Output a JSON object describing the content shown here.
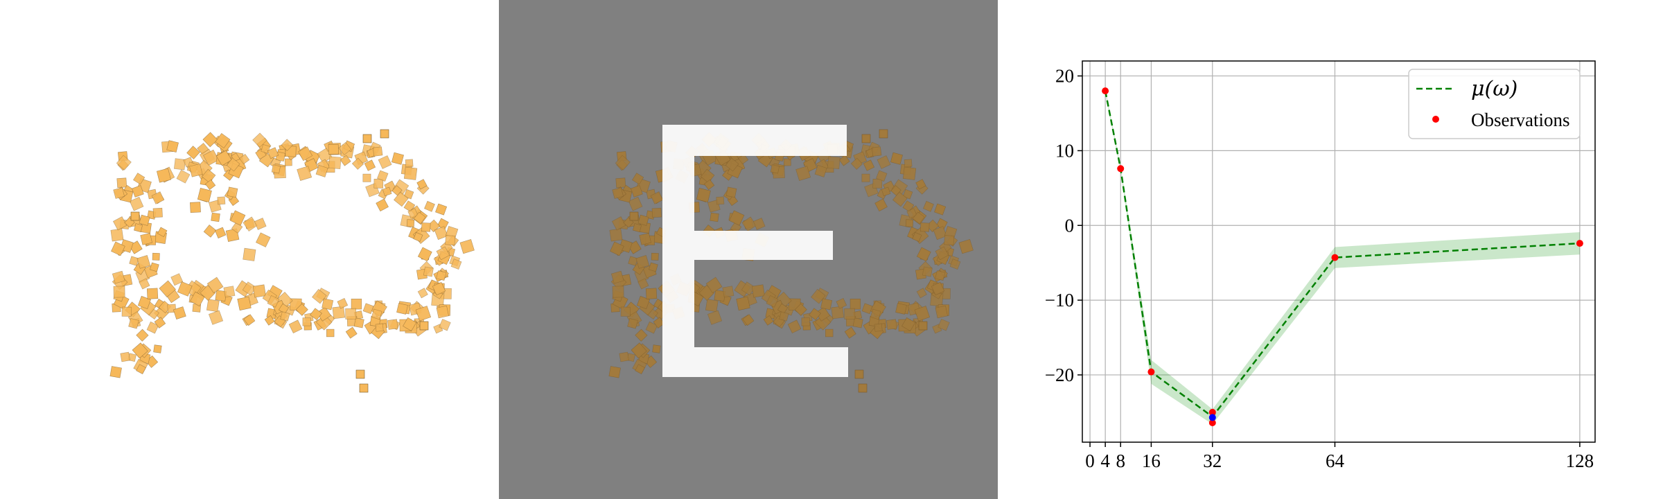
{
  "panels": {
    "left": {
      "name": "P-shaped block cluster",
      "block_color": "#f6b85a"
    },
    "middle": {
      "name": "E-letter overlay on block cluster",
      "background": "#808080",
      "block_color": "#a27a3c",
      "overlay_color": "#ffffff"
    }
  },
  "chart_data": {
    "type": "line",
    "title": "",
    "xlabel": "",
    "ylabel": "",
    "xlim": [
      -2,
      132
    ],
    "ylim": [
      -29,
      22
    ],
    "xticks": [
      0,
      4,
      8,
      16,
      32,
      64,
      128
    ],
    "yticks": [
      -20,
      -10,
      0,
      10,
      20
    ],
    "grid": true,
    "legend_position": "top-right",
    "series": [
      {
        "name": "μ(ω)",
        "style": "dashed",
        "color": "#008000",
        "x": [
          4,
          8,
          16,
          32,
          64,
          128
        ],
        "y": [
          18.0,
          7.6,
          -19.6,
          -25.6,
          -4.3,
          -2.4
        ],
        "band_halfwidth": [
          0.3,
          0.3,
          1.6,
          1.0,
          1.4,
          1.5
        ],
        "band_color": "#2ca02c"
      },
      {
        "name": "Observations",
        "style": "markers",
        "color": "#ff0000",
        "x": [
          4,
          8,
          16,
          32,
          32,
          64,
          128
        ],
        "y": [
          18.0,
          7.6,
          -19.6,
          -25.0,
          -26.4,
          -4.3,
          -2.4
        ]
      },
      {
        "name": "",
        "style": "markers",
        "color": "#0000ff",
        "x": [
          32
        ],
        "y": [
          -25.7
        ]
      }
    ]
  }
}
